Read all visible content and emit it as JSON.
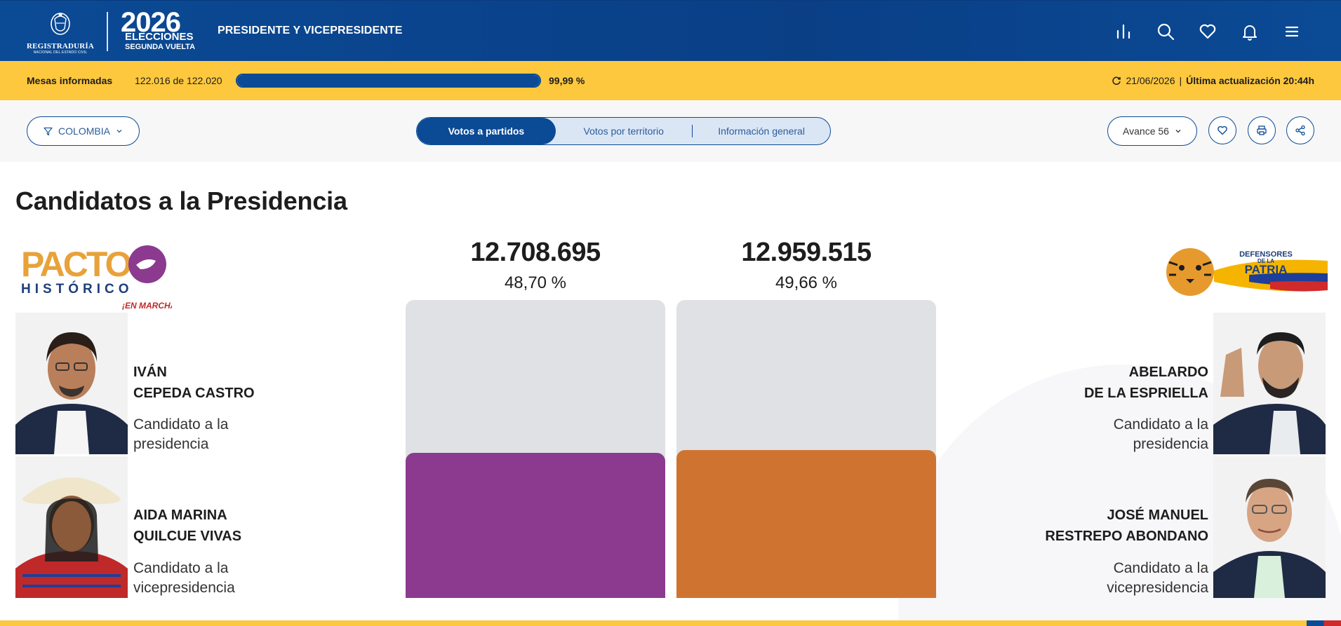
{
  "header": {
    "rnec_line1": "REGISTRADURÍA",
    "rnec_line2": "NACIONAL DEL ESTADO CIVIL",
    "election_year": "2026",
    "election_word": "ELECCIONES",
    "election_round": "SEGUNDA VUELTA",
    "title": "PRESIDENTE Y VICEPRESIDENTE",
    "icons": [
      "bar-chart-icon",
      "search-icon",
      "heart-icon",
      "bell-icon",
      "menu-icon"
    ]
  },
  "progress": {
    "label": "Mesas informadas",
    "count": "122.016 de 122.020",
    "percent_text": "99,99 %",
    "fraction": 0.9999,
    "date": "21/06/2026",
    "separator": "|",
    "update_text": "Última actualización 20:44h"
  },
  "toolbar": {
    "filter_label": "COLOMBIA",
    "tabs": [
      "Votos a partidos",
      "Votos por territorio",
      "Información general"
    ],
    "avance_label": "Avance 56"
  },
  "main": {
    "title": "Candidatos a la Presidencia"
  },
  "parties": {
    "left_name": "PACTO",
    "left_sub": "HISTÓRICO",
    "left_tag": "¡EN MARCHA!",
    "right_line1": "DEFENSORES",
    "right_line2": "DE LA",
    "right_line3": "PATRIA"
  },
  "candidates": {
    "left": {
      "president_line1": "IVÁN",
      "president_line2": "CEPEDA CASTRO",
      "president_role_line1": "Candidato a la",
      "president_role_line2": "presidencia",
      "vice_line1": "AIDA MARINA",
      "vice_line2": "QUILCUE VIVAS",
      "vice_role_line1": "Candidato a la",
      "vice_role_line2": "vicepresidencia",
      "votes": "12.708.695",
      "percent_text": "48,70 %",
      "percent": 48.7,
      "color": "#8b3a8f"
    },
    "right": {
      "president_line1": "ABELARDO",
      "president_line2": "DE LA ESPRIELLA",
      "president_role_line1": "Candidato a la",
      "president_role_line2": "presidencia",
      "vice_line1": "JOSÉ MANUEL",
      "vice_line2": "RESTREPO ABONDANO",
      "vice_role_line1": "Candidato a la",
      "vice_role_line2": "vicepresidencia",
      "votes": "12.959.515",
      "percent_text": "49,66 %",
      "percent": 49.66,
      "color": "#cf7430"
    }
  },
  "colors": {
    "brand_blue": "#0b4a95",
    "brand_yellow": "#fdc83e",
    "bar_track": "#e0e1e5"
  }
}
